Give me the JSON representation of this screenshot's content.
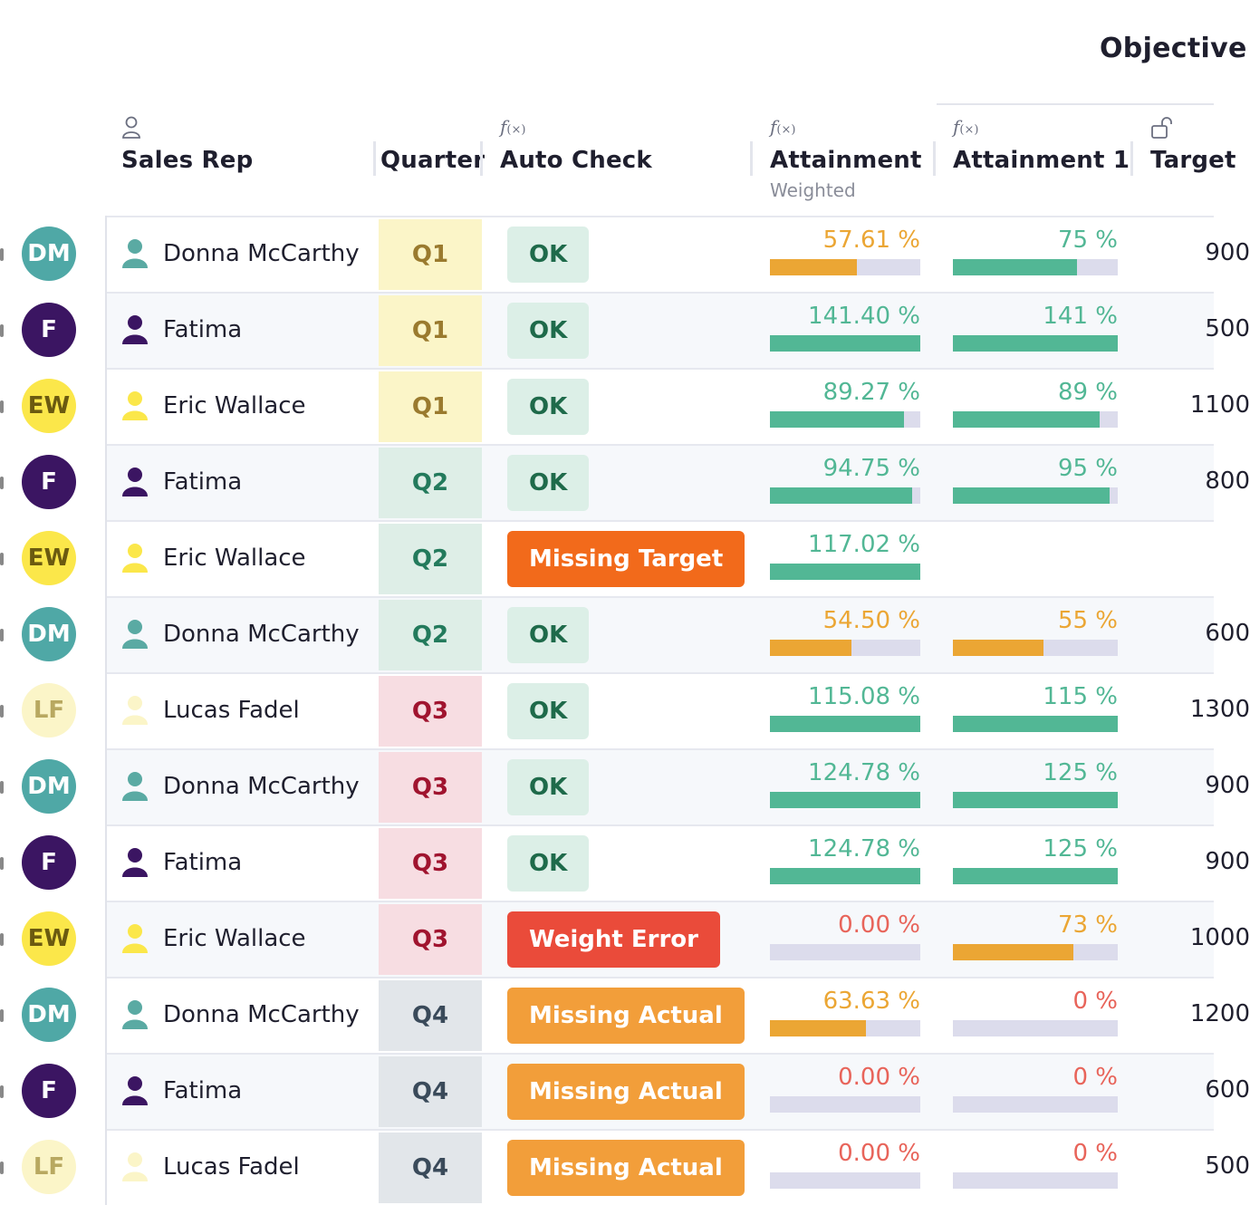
{
  "group_title": "Objective",
  "headers": {
    "sales_rep": "Sales Rep",
    "quarter": "Quarter",
    "auto_check": "Auto Check",
    "attainment": "Attainment",
    "attainment_sub": "Weighted",
    "attainment1": "Attainment 1",
    "target": "Target"
  },
  "colors": {
    "green": "#52b795",
    "orange": "#eba634",
    "red": "#e8645a",
    "bar_bg": "#dcdcec",
    "ok_bg": "#dcefe7",
    "ok_text": "#1e6a4a"
  },
  "quarter_styles": {
    "Q1": {
      "bg": "#fbf5c8",
      "fg": "#9a7a2e"
    },
    "Q2": {
      "bg": "#deeee7",
      "fg": "#237a5c"
    },
    "Q3": {
      "bg": "#f7dde2",
      "fg": "#a0142f"
    },
    "Q4": {
      "bg": "#e2e6ea",
      "fg": "#3a4a5a"
    }
  },
  "status_styles": {
    "OK": {
      "bg": "#dcefe7",
      "fg": "#1e6a4a"
    },
    "Missing Target": {
      "bg": "#f26a1b",
      "fg": "#ffffff"
    },
    "Weight Error": {
      "bg": "#ea4b3a",
      "fg": "#ffffff"
    },
    "Missing Actual": {
      "bg": "#f29e3a",
      "fg": "#ffffff"
    }
  },
  "rows": [
    {
      "initials": "DM",
      "avatar_bg": "#4fa8a6",
      "avatar_fg": "#ffffff",
      "person_color": "#5aaaa3",
      "name": "Donna McCarthy",
      "quarter": "Q1",
      "status": "OK",
      "attainment": "57.61 %",
      "att_value": 57.61,
      "att_color": "#eba634",
      "attainment1": "75 %",
      "att1_value": 75,
      "att1_color": "#52b795",
      "target": "900"
    },
    {
      "initials": "F",
      "avatar_bg": "#3b1562",
      "avatar_fg": "#ffffff",
      "person_color": "#3b1562",
      "name": "Fatima",
      "quarter": "Q1",
      "status": "OK",
      "attainment": "141.40 %",
      "att_value": 141.4,
      "att_color": "#52b795",
      "attainment1": "141 %",
      "att1_value": 141,
      "att1_color": "#52b795",
      "target": "500"
    },
    {
      "initials": "EW",
      "avatar_bg": "#fbe74a",
      "avatar_fg": "#6b5a10",
      "person_color": "#fbe74a",
      "name": "Eric Wallace",
      "quarter": "Q1",
      "status": "OK",
      "attainment": "89.27 %",
      "att_value": 89.27,
      "att_color": "#52b795",
      "attainment1": "89 %",
      "att1_value": 89,
      "att1_color": "#52b795",
      "target": "1100"
    },
    {
      "initials": "F",
      "avatar_bg": "#3b1562",
      "avatar_fg": "#ffffff",
      "person_color": "#3b1562",
      "name": "Fatima",
      "quarter": "Q2",
      "status": "OK",
      "attainment": "94.75 %",
      "att_value": 94.75,
      "att_color": "#52b795",
      "attainment1": "95 %",
      "att1_value": 95,
      "att1_color": "#52b795",
      "target": "800"
    },
    {
      "initials": "EW",
      "avatar_bg": "#fbe74a",
      "avatar_fg": "#6b5a10",
      "person_color": "#fbe74a",
      "name": "Eric Wallace",
      "quarter": "Q2",
      "status": "Missing Target",
      "attainment": "117.02 %",
      "att_value": 117.02,
      "att_color": "#52b795",
      "attainment1": "",
      "att1_value": null,
      "att1_color": "#52b795",
      "target": ""
    },
    {
      "initials": "DM",
      "avatar_bg": "#4fa8a6",
      "avatar_fg": "#ffffff",
      "person_color": "#5aaaa3",
      "name": "Donna McCarthy",
      "quarter": "Q2",
      "status": "OK",
      "attainment": "54.50 %",
      "att_value": 54.5,
      "att_color": "#eba634",
      "attainment1": "55 %",
      "att1_value": 55,
      "att1_color": "#eba634",
      "target": "600"
    },
    {
      "initials": "LF",
      "avatar_bg": "#fbf5c8",
      "avatar_fg": "#b8a860",
      "person_color": "#fbf5c8",
      "name": "Lucas Fadel",
      "quarter": "Q3",
      "status": "OK",
      "attainment": "115.08 %",
      "att_value": 115.08,
      "att_color": "#52b795",
      "attainment1": "115 %",
      "att1_value": 115,
      "att1_color": "#52b795",
      "target": "1300"
    },
    {
      "initials": "DM",
      "avatar_bg": "#4fa8a6",
      "avatar_fg": "#ffffff",
      "person_color": "#5aaaa3",
      "name": "Donna McCarthy",
      "quarter": "Q3",
      "status": "OK",
      "attainment": "124.78 %",
      "att_value": 124.78,
      "att_color": "#52b795",
      "attainment1": "125 %",
      "att1_value": 125,
      "att1_color": "#52b795",
      "target": "900"
    },
    {
      "initials": "F",
      "avatar_bg": "#3b1562",
      "avatar_fg": "#ffffff",
      "person_color": "#3b1562",
      "name": "Fatima",
      "quarter": "Q3",
      "status": "OK",
      "attainment": "124.78 %",
      "att_value": 124.78,
      "att_color": "#52b795",
      "attainment1": "125 %",
      "att1_value": 125,
      "att1_color": "#52b795",
      "target": "900"
    },
    {
      "initials": "EW",
      "avatar_bg": "#fbe74a",
      "avatar_fg": "#6b5a10",
      "person_color": "#fbe74a",
      "name": "Eric Wallace",
      "quarter": "Q3",
      "status": "Weight Error",
      "attainment": "0.00 %",
      "att_value": 0,
      "att_color": "#e8645a",
      "attainment1": "73 %",
      "att1_value": 73,
      "att1_color": "#eba634",
      "target": "1000"
    },
    {
      "initials": "DM",
      "avatar_bg": "#4fa8a6",
      "avatar_fg": "#ffffff",
      "person_color": "#5aaaa3",
      "name": "Donna McCarthy",
      "quarter": "Q4",
      "status": "Missing Actual",
      "attainment": "63.63 %",
      "att_value": 63.63,
      "att_color": "#eba634",
      "attainment1": "0 %",
      "att1_value": 0,
      "att1_color": "#e8645a",
      "target": "1200"
    },
    {
      "initials": "F",
      "avatar_bg": "#3b1562",
      "avatar_fg": "#ffffff",
      "person_color": "#3b1562",
      "name": "Fatima",
      "quarter": "Q4",
      "status": "Missing Actual",
      "attainment": "0.00 %",
      "att_value": 0,
      "att_color": "#e8645a",
      "attainment1": "0 %",
      "att1_value": 0,
      "att1_color": "#e8645a",
      "target": "600"
    },
    {
      "initials": "LF",
      "avatar_bg": "#fbf5c8",
      "avatar_fg": "#b8a860",
      "person_color": "#fbf5c8",
      "name": "Lucas Fadel",
      "quarter": "Q4",
      "status": "Missing Actual",
      "attainment": "0.00 %",
      "att_value": 0,
      "att_color": "#e8645a",
      "attainment1": "0 %",
      "att1_value": 0,
      "att1_color": "#e8645a",
      "target": "500"
    }
  ]
}
